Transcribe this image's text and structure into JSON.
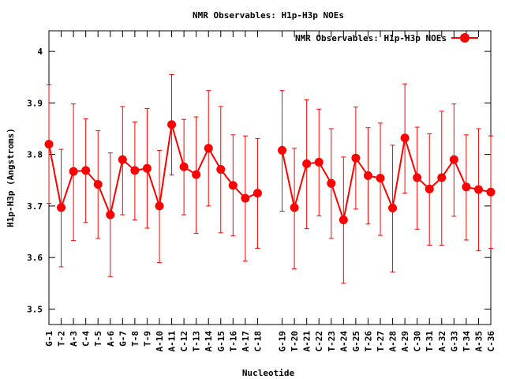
{
  "chart_data": {
    "type": "line",
    "title": "NMR Observables: H1p-H3p NOEs",
    "xlabel": "Nucleotide",
    "ylabel": "H1p-H3p (Angstroms)",
    "ylim": [
      3.47,
      4.04
    ],
    "yticks": [
      "3.5",
      "3.6",
      "3.7",
      "3.8",
      "3.9",
      "4"
    ],
    "legend_position": "top-right",
    "grid": false,
    "series": [
      {
        "name": "NMR Observables: H1p-H3p NOEs",
        "color": "#ff0000",
        "segments": [
          {
            "categories": [
              "G-1",
              "T-2",
              "A-3",
              "C-4",
              "T-5",
              "A-6",
              "G-7",
              "T-8",
              "T-9",
              "A-10",
              "A-11",
              "C-12",
              "T-13",
              "A-14",
              "G-15",
              "T-16",
              "A-17",
              "C-18"
            ],
            "values": [
              3.82,
              3.697,
              3.767,
              3.769,
              3.742,
              3.683,
              3.79,
              3.769,
              3.773,
              3.7,
              3.858,
              3.776,
              3.761,
              3.812,
              3.771,
              3.74,
              3.715,
              3.725
            ],
            "err_low": [
              3.705,
              3.582,
              3.633,
              3.668,
              3.637,
              3.563,
              3.683,
              3.673,
              3.657,
              3.59,
              3.76,
              3.683,
              3.647,
              3.7,
              3.648,
              3.642,
              3.593,
              3.618
            ],
            "err_high": [
              3.935,
              3.81,
              3.898,
              3.869,
              3.846,
              3.803,
              3.893,
              3.863,
              3.889,
              3.808,
              3.955,
              3.868,
              3.873,
              3.924,
              3.893,
              3.838,
              3.836,
              3.831
            ]
          },
          {
            "categories": [
              "G-19",
              "T-20",
              "A-21",
              "C-22",
              "T-23",
              "A-24",
              "G-25",
              "T-26",
              "T-27",
              "A-28",
              "A-29",
              "C-30",
              "T-31",
              "A-32",
              "G-33",
              "T-34",
              "A-35",
              "C-36"
            ],
            "values": [
              3.808,
              3.697,
              3.782,
              3.785,
              3.744,
              3.673,
              3.793,
              3.759,
              3.754,
              3.696,
              3.832,
              3.755,
              3.733,
              3.755,
              3.79,
              3.737,
              3.732,
              3.727
            ],
            "err_low": [
              3.69,
              3.578,
              3.656,
              3.681,
              3.637,
              3.55,
              3.694,
              3.665,
              3.643,
              3.572,
              3.725,
              3.655,
              3.624,
              3.624,
              3.68,
              3.634,
              3.613,
              3.618
            ],
            "err_high": [
              3.924,
              3.812,
              3.906,
              3.888,
              3.85,
              3.795,
              3.892,
              3.852,
              3.861,
              3.818,
              3.937,
              3.853,
              3.84,
              3.884,
              3.898,
              3.838,
              3.85,
              3.836
            ]
          }
        ]
      }
    ]
  }
}
